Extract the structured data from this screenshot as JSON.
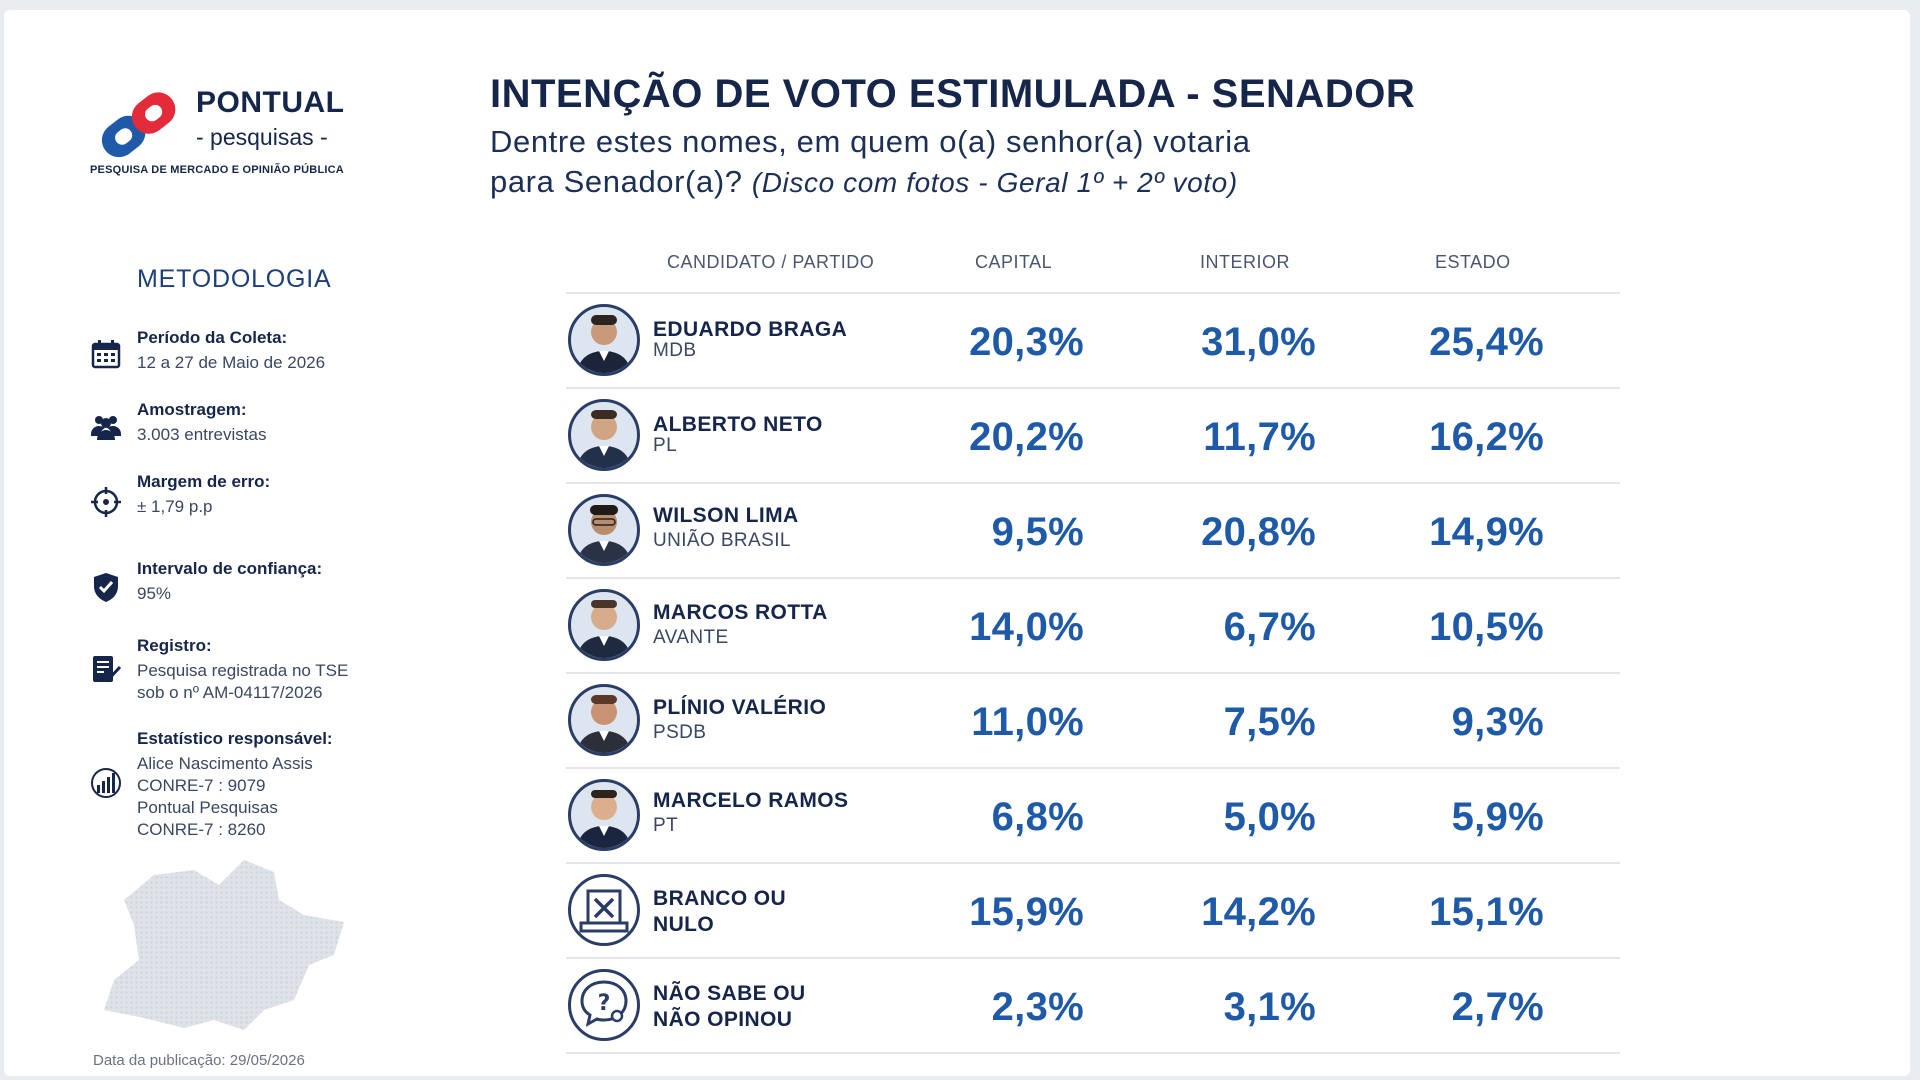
{
  "logo": {
    "brand": "PONTUAL",
    "subtitle": "- pesquisas -",
    "tagline": "PESQUISA DE MERCADO E OPINIÃO PÚBLICA",
    "colors": {
      "blue": "#1f5aa8",
      "red": "#e32b3a"
    }
  },
  "header": {
    "title": "INTENÇÃO DE VOTO ESTIMULADA - SENADOR",
    "question_line1": "Dentre estes nomes, em quem o(a) senhor(a) votaria",
    "question_line2": "para Senador(a)?",
    "question_note": "(Disco com fotos - Geral 1º + 2º voto)"
  },
  "methodology": {
    "title": "METODOLOGIA",
    "items": [
      {
        "icon": "calendar-icon",
        "label": "Período da Coleta:",
        "value": "12 a 27 de Maio de 2026"
      },
      {
        "icon": "people-icon",
        "label": "Amostragem:",
        "value": "3.003 entrevistas"
      },
      {
        "icon": "crosshair-icon",
        "label": "Margem de erro:",
        "value": "± 1,79 p.p"
      },
      {
        "icon": "shield-check-icon",
        "label": "Intervalo de confiança:",
        "value": "95%"
      },
      {
        "icon": "registry-icon",
        "label": "Registro:",
        "value": "Pesquisa registrada no TSE\nsob o nº AM-04117/2026"
      },
      {
        "icon": "chart-icon",
        "label": "Estatístico responsável:",
        "value": "Alice Nascimento Assis\nCONRE-7 : 9079\nPontual Pesquisas\nCONRE-7 : 8260"
      }
    ],
    "publication": "Data da publicação: 29/05/2026"
  },
  "table": {
    "headers": [
      "CANDIDATO / PARTIDO",
      "CAPITAL",
      "INTERIOR",
      "ESTADO"
    ],
    "rows": [
      {
        "name": "EDUARDO BRAGA",
        "party": "MDB",
        "capital": "20,3%",
        "interior": "31,0%",
        "estado": "25,4%",
        "icon": "person-photo"
      },
      {
        "name": "ALBERTO NETO",
        "party": "PL",
        "capital": "20,2%",
        "interior": "11,7%",
        "estado": "16,2%",
        "icon": "person-photo"
      },
      {
        "name": "WILSON LIMA",
        "party": "UNIÃO BRASIL",
        "capital": "9,5%",
        "interior": "20,8%",
        "estado": "14,9%",
        "icon": "person-photo"
      },
      {
        "name": "MARCOS ROTTA",
        "party": "AVANTE",
        "capital": "14,0%",
        "interior": "6,7%",
        "estado": "10,5%",
        "icon": "person-photo"
      },
      {
        "name": "PLÍNIO VALÉRIO",
        "party": "PSDB",
        "capital": "11,0%",
        "interior": "7,5%",
        "estado": "9,3%",
        "icon": "person-photo"
      },
      {
        "name": "MARCELO RAMOS",
        "party": "PT",
        "capital": "6,8%",
        "interior": "5,0%",
        "estado": "5,9%",
        "icon": "person-photo"
      },
      {
        "name": "BRANCO OU",
        "name2": "NULO",
        "party": "",
        "capital": "15,9%",
        "interior": "14,2%",
        "estado": "15,1%",
        "icon": "ballot-x-icon"
      },
      {
        "name": "NÃO SABE OU",
        "name2": "NÃO OPINOU",
        "party": "",
        "capital": "2,3%",
        "interior": "3,1%",
        "estado": "2,7%",
        "icon": "question-bubble-icon"
      }
    ]
  }
}
